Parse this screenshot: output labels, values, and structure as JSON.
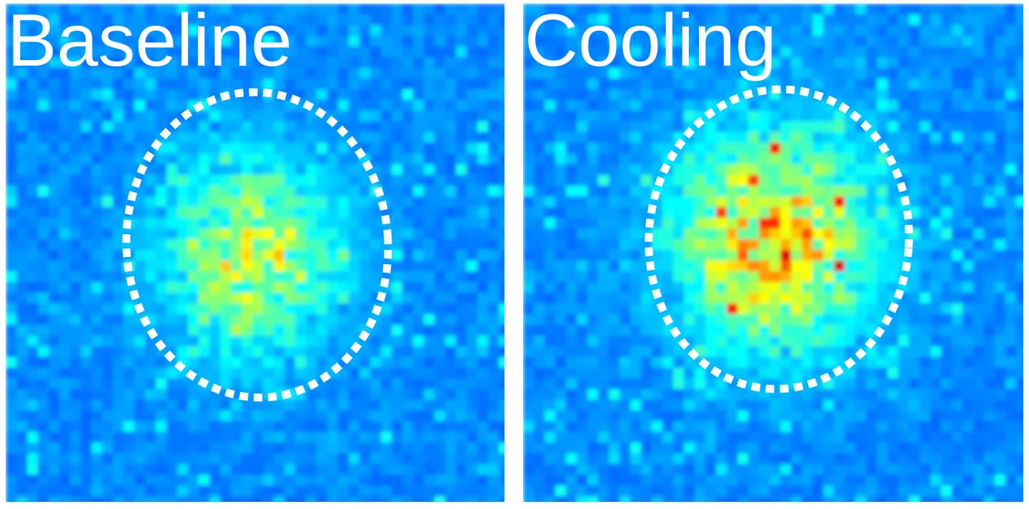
{
  "panels": [
    {
      "label": "Baseline"
    },
    {
      "label": "Cooling"
    }
  ]
}
